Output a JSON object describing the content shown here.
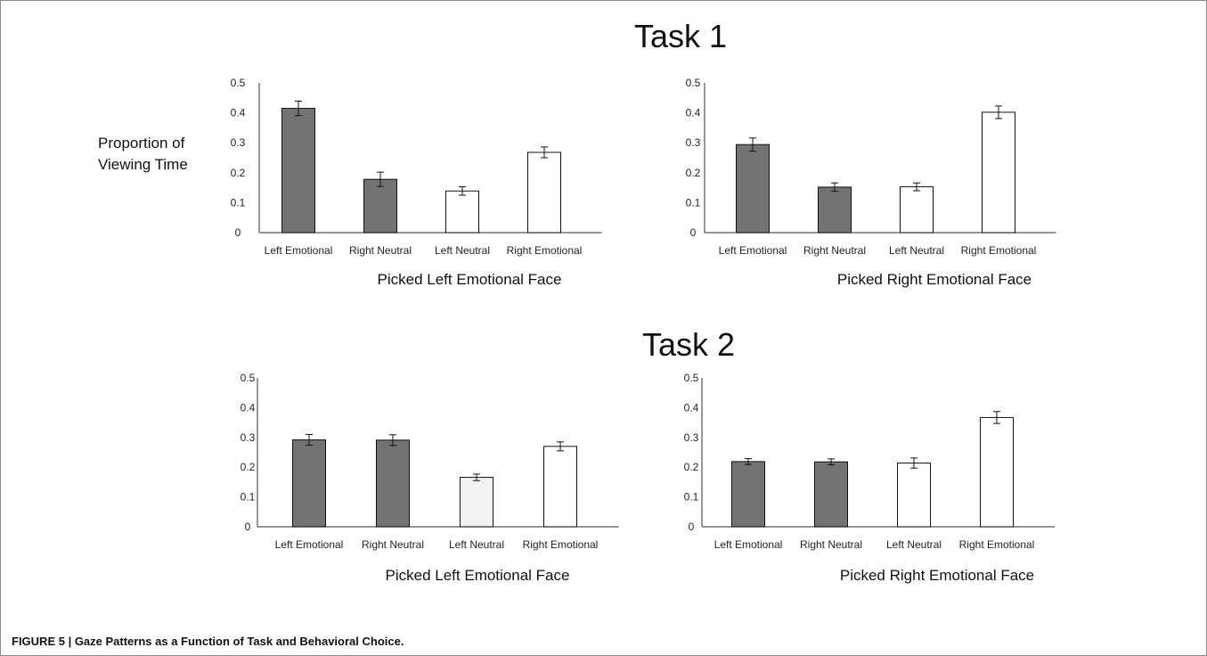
{
  "figure": {
    "task1_title": "Task 1",
    "task2_title": "Task 2",
    "ylabel_line1": "Proportion of",
    "ylabel_line2": "Viewing Time",
    "caption": "FIGURE 5 | Gaze Patterns as a Function of Task and Behavioral Choice."
  },
  "colors": {
    "dark_bar": "#737373",
    "light_bar": "#f1f1f1",
    "white_bar": "#ffffff",
    "stroke": "#111111"
  },
  "chart_data": [
    {
      "type": "bar",
      "task": "Task 1",
      "title": "Picked Left Emotional Face",
      "xlabel": "Picked Left Emotional Face",
      "ylabel": "Proportion of Viewing Time",
      "categories": [
        "Left Emotional",
        "Right Neutral",
        "Left Neutral",
        "Right Emotional"
      ],
      "values": [
        0.415,
        0.178,
        0.139,
        0.268
      ],
      "errors": [
        0.024,
        0.024,
        0.014,
        0.018
      ],
      "bar_colors": [
        "dark",
        "dark",
        "white",
        "white"
      ],
      "yticks": [
        "0",
        "0.1",
        "0.2",
        "0.3",
        "0.4",
        "0.5"
      ],
      "ylim": [
        0,
        0.5
      ]
    },
    {
      "type": "bar",
      "task": "Task 1",
      "title": "Picked Right Emotional Face",
      "xlabel": "Picked Right Emotional Face",
      "ylabel": "",
      "categories": [
        "Left Emotional",
        "Right Neutral",
        "Left Neutral",
        "Right Emotional"
      ],
      "values": [
        0.294,
        0.152,
        0.153,
        0.402
      ],
      "errors": [
        0.022,
        0.014,
        0.013,
        0.021
      ],
      "bar_colors": [
        "dark",
        "dark",
        "white",
        "white"
      ],
      "yticks": [
        "0",
        "0.1",
        "0.2",
        "0.3",
        "0.4",
        "0.5"
      ],
      "ylim": [
        0,
        0.5
      ]
    },
    {
      "type": "bar",
      "task": "Task 2",
      "title": "Picked Left Emotional Face",
      "xlabel": "Picked Left Emotional Face",
      "ylabel": "",
      "categories": [
        "Left Emotional",
        "Right Neutral",
        "Left Neutral",
        "Right Emotional"
      ],
      "values": [
        0.292,
        0.291,
        0.166,
        0.27
      ],
      "errors": [
        0.018,
        0.018,
        0.011,
        0.015
      ],
      "bar_colors": [
        "dark",
        "dark",
        "light",
        "white"
      ],
      "yticks": [
        "0",
        "0.1",
        "0.2",
        "0.3",
        "0.4",
        "0.5"
      ],
      "ylim": [
        0,
        0.5
      ]
    },
    {
      "type": "bar",
      "task": "Task 2",
      "title": "Picked Right Emotional Face",
      "xlabel": "Picked Right Emotional Face",
      "ylabel": "",
      "categories": [
        "Left Emotional",
        "Right Neutral",
        "Left Neutral",
        "Right Emotional"
      ],
      "values": [
        0.219,
        0.218,
        0.214,
        0.367
      ],
      "errors": [
        0.01,
        0.01,
        0.017,
        0.02
      ],
      "bar_colors": [
        "dark",
        "dark",
        "white",
        "white"
      ],
      "yticks": [
        "0",
        "0.1",
        "0.2",
        "0.3",
        "0.4",
        "0.5"
      ],
      "ylim": [
        0,
        0.5
      ]
    }
  ]
}
